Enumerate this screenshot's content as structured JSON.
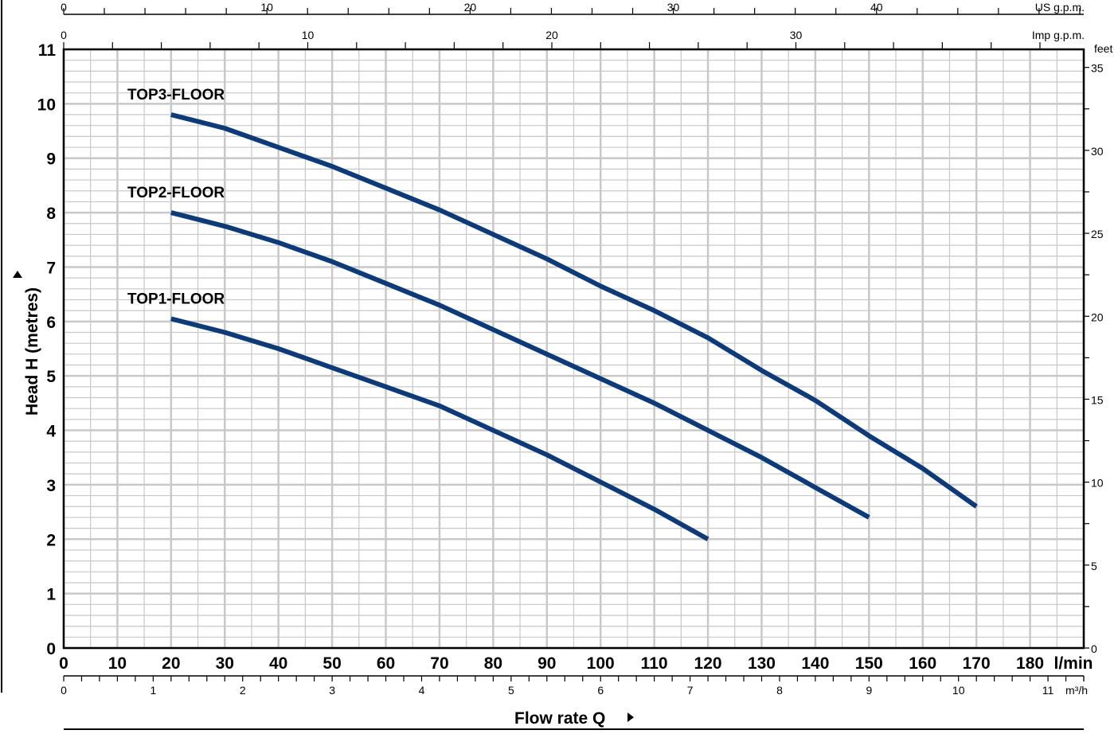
{
  "chart_data": {
    "type": "line",
    "title": "",
    "xlabel": "Flow rate Q",
    "ylabel": "Head H  (metres)",
    "x_unit": "l/min",
    "xlim": [
      0,
      190
    ],
    "ylim": [
      0,
      11
    ],
    "grid": true,
    "x_ticks": [
      0,
      10,
      20,
      30,
      40,
      50,
      60,
      70,
      80,
      90,
      100,
      110,
      120,
      130,
      140,
      150,
      160,
      170,
      180
    ],
    "y_ticks": [
      0,
      1,
      2,
      3,
      4,
      5,
      6,
      7,
      8,
      9,
      10,
      11
    ],
    "secondary_axes": {
      "us_gpm": {
        "label": "US g.p.m.",
        "ticks": [
          0,
          10,
          20,
          30,
          40
        ]
      },
      "imp_gpm": {
        "label": "Imp g.p.m.",
        "ticks": [
          0,
          10,
          20,
          30
        ]
      },
      "m3h": {
        "label": "m³/h",
        "ticks": [
          0,
          1,
          2,
          3,
          4,
          5,
          6,
          7,
          8,
          9,
          10,
          11
        ]
      },
      "feet": {
        "label": "feet",
        "ticks": [
          0,
          5,
          10,
          15,
          20,
          25,
          30,
          35
        ]
      }
    },
    "series": [
      {
        "name": "TOP3-FLOOR",
        "x": [
          20,
          30,
          40,
          50,
          60,
          70,
          80,
          90,
          100,
          110,
          120,
          130,
          140,
          150,
          160,
          170
        ],
        "y": [
          9.8,
          9.55,
          9.2,
          8.85,
          8.45,
          8.05,
          7.6,
          7.15,
          6.65,
          6.2,
          5.7,
          5.1,
          4.55,
          3.9,
          3.3,
          2.6
        ]
      },
      {
        "name": "TOP2-FLOOR",
        "x": [
          20,
          30,
          40,
          50,
          60,
          70,
          80,
          90,
          100,
          110,
          120,
          130,
          140,
          150
        ],
        "y": [
          8.0,
          7.75,
          7.45,
          7.1,
          6.7,
          6.3,
          5.85,
          5.4,
          4.95,
          4.5,
          4.0,
          3.5,
          2.95,
          2.4
        ]
      },
      {
        "name": "TOP1-FLOOR",
        "x": [
          20,
          30,
          40,
          50,
          60,
          70,
          80,
          90,
          100,
          110,
          120
        ],
        "y": [
          6.05,
          5.8,
          5.5,
          5.15,
          4.8,
          4.45,
          4.0,
          3.55,
          3.05,
          2.55,
          2.0
        ]
      }
    ],
    "colors": {
      "curve": "#0d3a78",
      "grid": "#c8c8c8"
    }
  }
}
